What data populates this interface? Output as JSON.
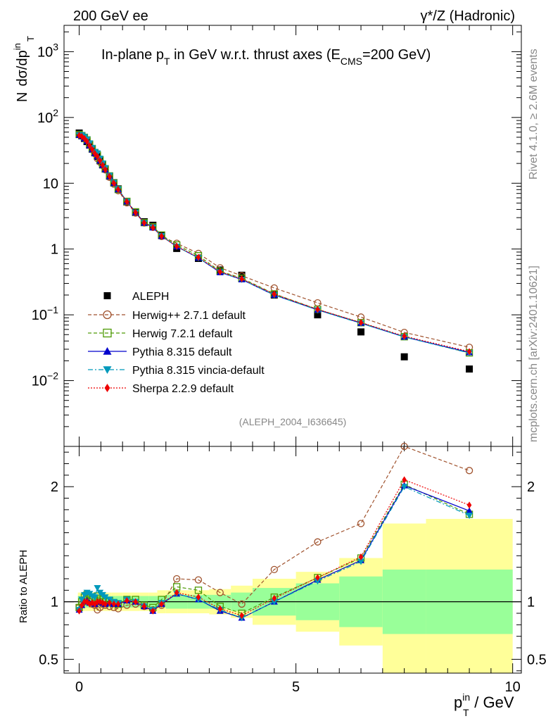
{
  "header": {
    "left": "200 GeV ee",
    "right": "γ*/Z (Hadronic)"
  },
  "side_labels": {
    "rivet": "Rivet 4.1.0, ≥ 2.6M events",
    "mcplots": "mcplots.cern.ch [arXiv:2401.10621]"
  },
  "chart_data": {
    "type": "scatter",
    "title": "In-plane pT in GeV w.r.t. thrust axes (ECMS=200 GeV)",
    "title_parts": {
      "a": "In-plane p",
      "a_sub": "T",
      "b": " in GeV w.r.t. thrust axes (E",
      "b_sub": "CMS",
      "c": "=200 GeV)"
    },
    "analysis_tag": "(ALEPH_2004_I636645)",
    "ylabel": "N dσ/dpTin",
    "ylabel_parts": {
      "n": "N",
      "main": "dσ/dp",
      "sup": "in",
      "sub": "T"
    },
    "xlabel": "pTin / GeV",
    "xlabel_parts": {
      "main": "p",
      "sup": "in",
      "sub": "T",
      "unit": " / GeV"
    },
    "ratio_ylabel": "Ratio to ALEPH",
    "xlim": [
      -0.35,
      10.2
    ],
    "ylim_main_log10": [
      -3.0,
      3.4
    ],
    "ylim_ratio": [
      0.38,
      2.35
    ],
    "main_y_ticks": [
      {
        "v": 0.01,
        "base": "10",
        "exp": "−2"
      },
      {
        "v": 0.1,
        "base": "10",
        "exp": "−1"
      },
      {
        "v": 1,
        "base": "1",
        "exp": ""
      },
      {
        "v": 10,
        "base": "10",
        "exp": ""
      },
      {
        "v": 100,
        "base": "10",
        "exp": "2"
      },
      {
        "v": 1000,
        "base": "10",
        "exp": "3"
      }
    ],
    "x_ticks": [
      {
        "v": 0,
        "label": "0"
      },
      {
        "v": 5,
        "label": "5"
      },
      {
        "v": 10,
        "label": "10"
      }
    ],
    "ratio_ticks": [
      {
        "v": 0.5,
        "label": "0.5"
      },
      {
        "v": 1,
        "label": "1"
      },
      {
        "v": 2,
        "label": "2"
      }
    ],
    "x": [
      0.0,
      0.06,
      0.12,
      0.18,
      0.24,
      0.3,
      0.36,
      0.42,
      0.48,
      0.54,
      0.6,
      0.7,
      0.8,
      0.9,
      1.1,
      1.3,
      1.5,
      1.7,
      1.9,
      2.25,
      2.75,
      3.25,
      3.75,
      4.5,
      5.5,
      6.5,
      7.5,
      9.0
    ],
    "bin_edges": [
      -0.03,
      0.03,
      0.09,
      0.15,
      0.21,
      0.27,
      0.33,
      0.39,
      0.45,
      0.51,
      0.57,
      0.65,
      0.75,
      0.85,
      1.0,
      1.2,
      1.4,
      1.6,
      1.8,
      2.0,
      2.5,
      3.0,
      3.5,
      4.0,
      5.0,
      6.0,
      7.0,
      8.0,
      10.0
    ],
    "data": {
      "name": "ALEPH",
      "color": "#000000",
      "values": [
        58,
        53,
        48,
        43,
        38,
        33,
        29,
        25.5,
        22,
        19,
        16.5,
        12.8,
        10.2,
        8.2,
        5.2,
        3.6,
        2.6,
        2.3,
        1.6,
        1.02,
        0.72,
        0.48,
        0.4,
        0.2,
        0.1,
        0.055,
        0.023,
        0.015
      ],
      "band_inner": [
        0.05,
        0.05,
        0.05,
        0.05,
        0.05,
        0.05,
        0.05,
        0.05,
        0.05,
        0.05,
        0.05,
        0.05,
        0.05,
        0.05,
        0.05,
        0.05,
        0.05,
        0.05,
        0.05,
        0.06,
        0.06,
        0.06,
        0.08,
        0.12,
        0.16,
        0.22,
        0.28,
        0.28
      ],
      "band_outer": [
        0.08,
        0.08,
        0.08,
        0.08,
        0.08,
        0.08,
        0.08,
        0.08,
        0.08,
        0.08,
        0.08,
        0.08,
        0.08,
        0.08,
        0.08,
        0.08,
        0.08,
        0.08,
        0.1,
        0.1,
        0.1,
        0.11,
        0.14,
        0.2,
        0.26,
        0.38,
        0.68,
        0.72
      ]
    },
    "band_colors": {
      "inner": "#99ff99",
      "outer": "#ffff99"
    },
    "series": [
      {
        "name": "Herwig++ 2.7.1 default",
        "color": "#a0522d",
        "marker": "open-circle",
        "dash": "5,3",
        "ratio": [
          0.95,
          0.98,
          1.02,
          1.04,
          1.0,
          0.98,
          0.97,
          0.93,
          0.95,
          0.98,
          0.97,
          0.96,
          0.95,
          0.94,
          0.97,
          0.98,
          0.96,
          0.93,
          0.97,
          1.2,
          1.19,
          1.08,
          0.98,
          1.28,
          1.52,
          1.68,
          2.35,
          2.14
        ]
      },
      {
        "name": "Herwig 7.2.1 default",
        "color": "#4e9a06",
        "marker": "open-square",
        "dash": "5,3",
        "ratio": [
          0.95,
          1.0,
          1.04,
          1.06,
          1.03,
          1.02,
          1.01,
          1.05,
          1.03,
          1.02,
          1.0,
          1.01,
          0.99,
          0.98,
          1.02,
          1.02,
          0.97,
          0.95,
          1.02,
          1.13,
          1.1,
          0.96,
          0.9,
          1.04,
          1.21,
          1.38,
          2.02,
          1.76
        ]
      },
      {
        "name": "Pythia 8.315 default",
        "color": "#0000cc",
        "marker": "triangle-up",
        "dash": "",
        "ratio": [
          0.93,
          0.97,
          1.0,
          1.01,
          0.99,
          0.99,
          0.98,
          1.0,
          1.0,
          0.99,
          0.98,
          0.99,
          0.98,
          0.98,
          1.01,
          1.0,
          0.96,
          0.92,
          0.98,
          1.07,
          1.02,
          0.92,
          0.86,
          1.0,
          1.19,
          1.36,
          2.01,
          1.79
        ]
      },
      {
        "name": "Pythia 8.315 vincia-default",
        "color": "#0099bb",
        "marker": "triangle-down",
        "dash": "7,3,2,3",
        "ratio": [
          0.93,
          1.02,
          1.06,
          1.08,
          1.07,
          1.05,
          1.04,
          1.12,
          1.08,
          1.06,
          1.04,
          1.02,
          1.0,
          0.99,
          1.02,
          1.0,
          0.96,
          0.93,
          0.99,
          1.07,
          1.02,
          0.93,
          0.86,
          1.0,
          1.18,
          1.35,
          2.0,
          1.75
        ]
      },
      {
        "name": "Sherpa 2.2.9 default",
        "color": "#ee0000",
        "marker": "diamond",
        "dash": "2,2",
        "ratio": [
          0.92,
          0.97,
          1.0,
          1.0,
          0.98,
          0.99,
          0.98,
          1.0,
          1.0,
          0.99,
          0.98,
          0.99,
          0.98,
          0.98,
          1.01,
          1.0,
          0.96,
          0.92,
          0.98,
          1.08,
          1.04,
          0.94,
          0.88,
          1.03,
          1.21,
          1.39,
          2.06,
          1.84
        ]
      }
    ]
  }
}
